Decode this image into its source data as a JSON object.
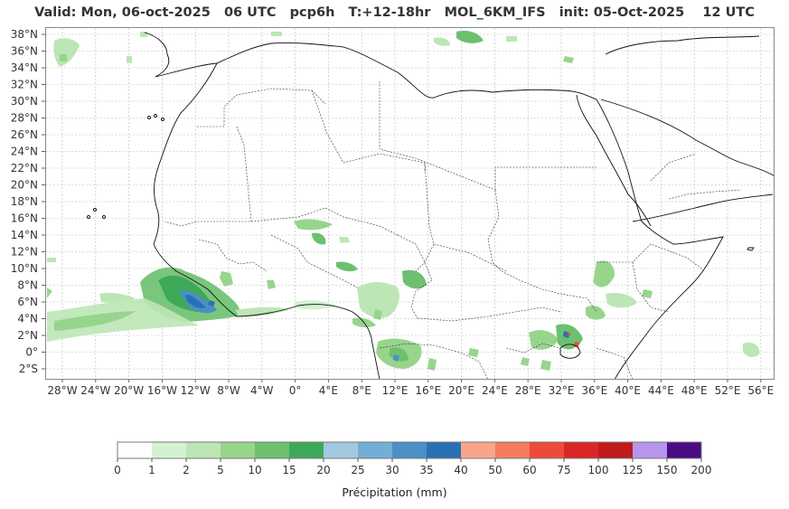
{
  "title": "Valid: Mon, 06-oct-2025   06 UTC   pcp6h   T:+12-18hr   MOL_6KM_IFS   init: 05-Oct-2025    12 UTC",
  "map": {
    "lat_labels": [
      "38°N",
      "36°N",
      "34°N",
      "32°N",
      "30°N",
      "28°N",
      "26°N",
      "24°N",
      "22°N",
      "20°N",
      "18°N",
      "16°N",
      "14°N",
      "12°N",
      "10°N",
      "8°N",
      "6°N",
      "4°N",
      "2°N",
      "0°",
      "2°S"
    ],
    "lon_labels": [
      "28°W",
      "24°W",
      "20°W",
      "16°W",
      "12°W",
      "8°W",
      "4°W",
      "0°",
      "4°E",
      "8°E",
      "12°E",
      "16°E",
      "20°E",
      "24°E",
      "28°E",
      "32°E",
      "36°E",
      "40°E",
      "44°E",
      "48°E",
      "52°E",
      "56°E"
    ],
    "extent": {
      "lon_min": -30,
      "lon_max": 57.5,
      "lat_min": -3,
      "lat_max": 39
    }
  },
  "colorbar": {
    "label": "Précipitation (mm)",
    "ticks": [
      "0",
      "1",
      "2",
      "5",
      "10",
      "15",
      "20",
      "25",
      "30",
      "35",
      "40",
      "50",
      "60",
      "75",
      "100",
      "125",
      "150",
      "200"
    ],
    "colors": [
      "#ffffff",
      "#d4f2d1",
      "#bce6b5",
      "#97d58d",
      "#6cc06f",
      "#3fa95a",
      "#a3c9e1",
      "#73aed6",
      "#4a90c4",
      "#2871b4",
      "#f9a58a",
      "#f67c5e",
      "#ee4a3a",
      "#da2626",
      "#c01a1c",
      "#b596ec",
      "#4a0b83"
    ]
  },
  "colors": {
    "land_outline": "#111111",
    "border": "#333333",
    "grid": "#bbbbbb"
  }
}
